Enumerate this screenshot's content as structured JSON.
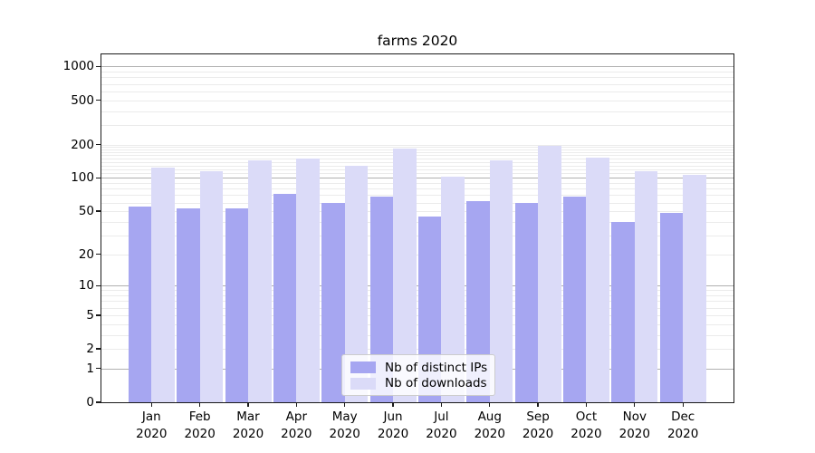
{
  "title": "farms 2020",
  "chart_data": {
    "type": "bar",
    "title": "farms 2020",
    "categories": [
      "Jan 2020",
      "Feb 2020",
      "Mar 2020",
      "Apr 2020",
      "May 2020",
      "Jun 2020",
      "Jul 2020",
      "Aug 2020",
      "Sep 2020",
      "Oct 2020",
      "Nov 2020",
      "Dec 2020"
    ],
    "series": [
      {
        "name": "Nb of distinct IPs",
        "color": "#a6a6f1",
        "values": [
          55,
          53,
          53,
          72,
          59,
          68,
          45,
          62,
          60,
          68,
          40,
          48
        ]
      },
      {
        "name": "Nb of downloads",
        "color": "#dbdbf8",
        "values": [
          124,
          115,
          143,
          150,
          128,
          185,
          102,
          143,
          194,
          152,
          114,
          106
        ]
      }
    ],
    "xlabel": "",
    "ylabel": "",
    "yscale": "log1p",
    "ylim": [
      0,
      1285
    ],
    "yticks": [
      1000,
      500,
      200,
      100,
      50,
      20,
      10,
      5,
      2,
      1,
      0
    ],
    "major_gridlines": [
      1,
      10,
      100,
      1000
    ],
    "minor_gridlines": [
      2,
      3,
      4,
      5,
      6,
      7,
      8,
      9,
      20,
      30,
      40,
      50,
      60,
      70,
      80,
      90,
      110,
      120,
      130,
      140,
      150,
      160,
      170,
      180,
      190,
      200,
      300,
      400,
      500,
      600,
      700,
      800,
      900
    ],
    "grid": true,
    "legend_position": "lower center"
  },
  "legend": {
    "items": [
      {
        "label": "Nb of distinct IPs",
        "color": "#a6a6f1"
      },
      {
        "label": "Nb of downloads",
        "color": "#dbdbf8"
      }
    ]
  },
  "colors": {
    "bar_ips": "#a6a6f1",
    "bar_downloads": "#dbdbf8",
    "grid_major": "#b0b0b0",
    "grid_minor": "#ebebeb",
    "spine": "#1a1a1a",
    "text": "#000000"
  }
}
